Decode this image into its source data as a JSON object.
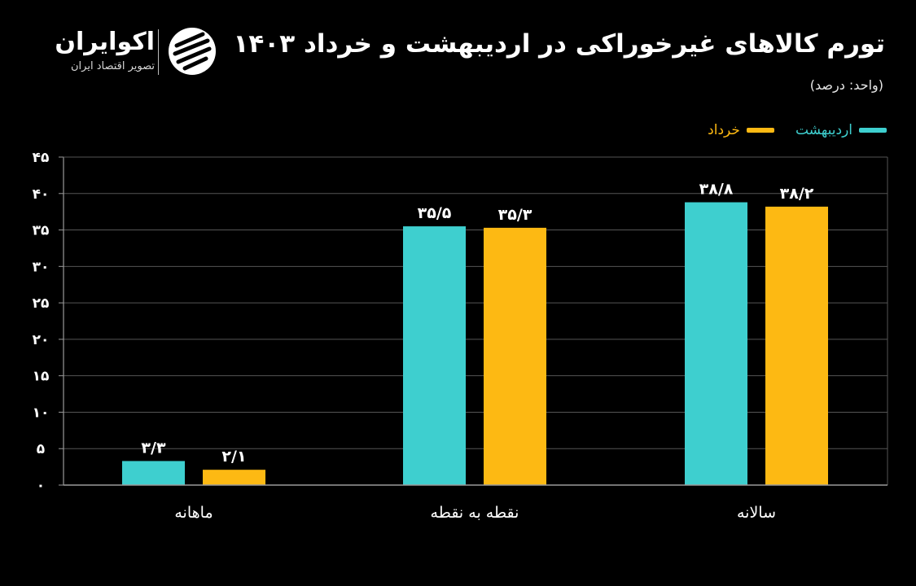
{
  "header": {
    "title": "تورم کالاهای غیرخوراکی در اردیبهشت و خرداد ۱۴۰۳",
    "unit": "(واحد: درصد)"
  },
  "brand": {
    "name": "اکوایران",
    "tagline": "تصویر اقتصاد ایران"
  },
  "colors": {
    "ordibehesht": "#3ecfcf",
    "khordad": "#fdb913",
    "axis": "#9a9a9a",
    "grid": "#555555"
  },
  "chart_data": {
    "type": "bar",
    "categories": [
      "ماهانه",
      "نقطه به نقطه",
      "سالانه"
    ],
    "series": [
      {
        "name": "اردیبهشت",
        "values": [
          3.3,
          35.5,
          38.8
        ],
        "labels": [
          "۳/۳",
          "۳۵/۵",
          "۳۸/۸"
        ]
      },
      {
        "name": "خرداد",
        "values": [
          2.1,
          35.3,
          38.2
        ],
        "labels": [
          "۲/۱",
          "۳۵/۳",
          "۳۸/۲"
        ]
      }
    ],
    "ylim": [
      0,
      45
    ],
    "yticks": [
      0,
      5,
      10,
      15,
      20,
      25,
      30,
      35,
      40,
      45
    ],
    "ytick_labels": [
      "۰",
      "۵",
      "۱۰",
      "۱۵",
      "۲۰",
      "۲۵",
      "۳۰",
      "۳۵",
      "۴۰",
      "۴۵"
    ],
    "grid": "horizontal",
    "legend_position": "top-right"
  }
}
